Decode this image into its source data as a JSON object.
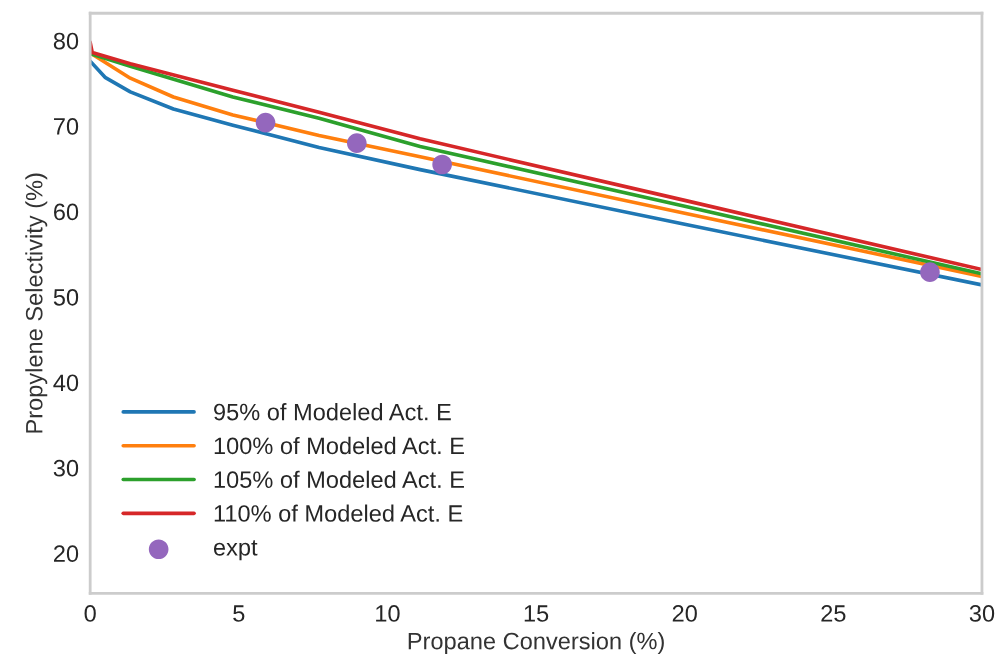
{
  "chart_data": {
    "type": "line",
    "xlabel": "Propane Conversion (%)",
    "ylabel": "Propylene Selectivity (%)",
    "xlim": [
      0,
      30
    ],
    "ylim": [
      15.3,
      83.2
    ],
    "xticks": [
      0,
      5,
      10,
      15,
      20,
      25,
      30
    ],
    "yticks": [
      20,
      30,
      40,
      50,
      60,
      70,
      80
    ],
    "grid": false,
    "legend": "bottom left",
    "series": [
      {
        "name": "95% of Modeled Act. E",
        "color": "#1f77b4",
        "x": [
          0,
          0.5,
          1.35,
          2.8,
          4.8,
          7.7,
          11.1,
          20,
          30
        ],
        "values": [
          77.6,
          75.7,
          74.0,
          72.0,
          70.1,
          67.5,
          64.9,
          58.5,
          51.4
        ]
      },
      {
        "name": "100% of Modeled Act. E",
        "color": "#ff7f0e",
        "x": [
          0.07,
          1.35,
          2.8,
          4.8,
          7.7,
          11.1,
          20,
          30
        ],
        "values": [
          78.4,
          75.6,
          73.4,
          71.3,
          68.9,
          66.4,
          59.8,
          52.4
        ]
      },
      {
        "name": "105% of Modeled Act. E",
        "color": "#2ca02c",
        "x": [
          0.07,
          1.35,
          4.8,
          7.7,
          11.1,
          20,
          30
        ],
        "values": [
          78.4,
          77.0,
          73.4,
          70.9,
          67.6,
          60.6,
          52.7
        ]
      },
      {
        "name": "110% of Modeled Act. E",
        "color": "#d62728",
        "x": [
          0,
          0.07,
          1.35,
          4.8,
          7.7,
          11.1,
          20,
          30
        ],
        "values": [
          79.8,
          78.6,
          77.3,
          74.2,
          71.6,
          68.5,
          61.3,
          53.2
        ]
      },
      {
        "name": "expt",
        "type": "scatter",
        "marker": "circle",
        "color": "#9467bd",
        "x": [
          5.9,
          8.97,
          11.84,
          28.25
        ],
        "values": [
          70.4,
          68.0,
          65.5,
          52.9
        ]
      }
    ]
  }
}
